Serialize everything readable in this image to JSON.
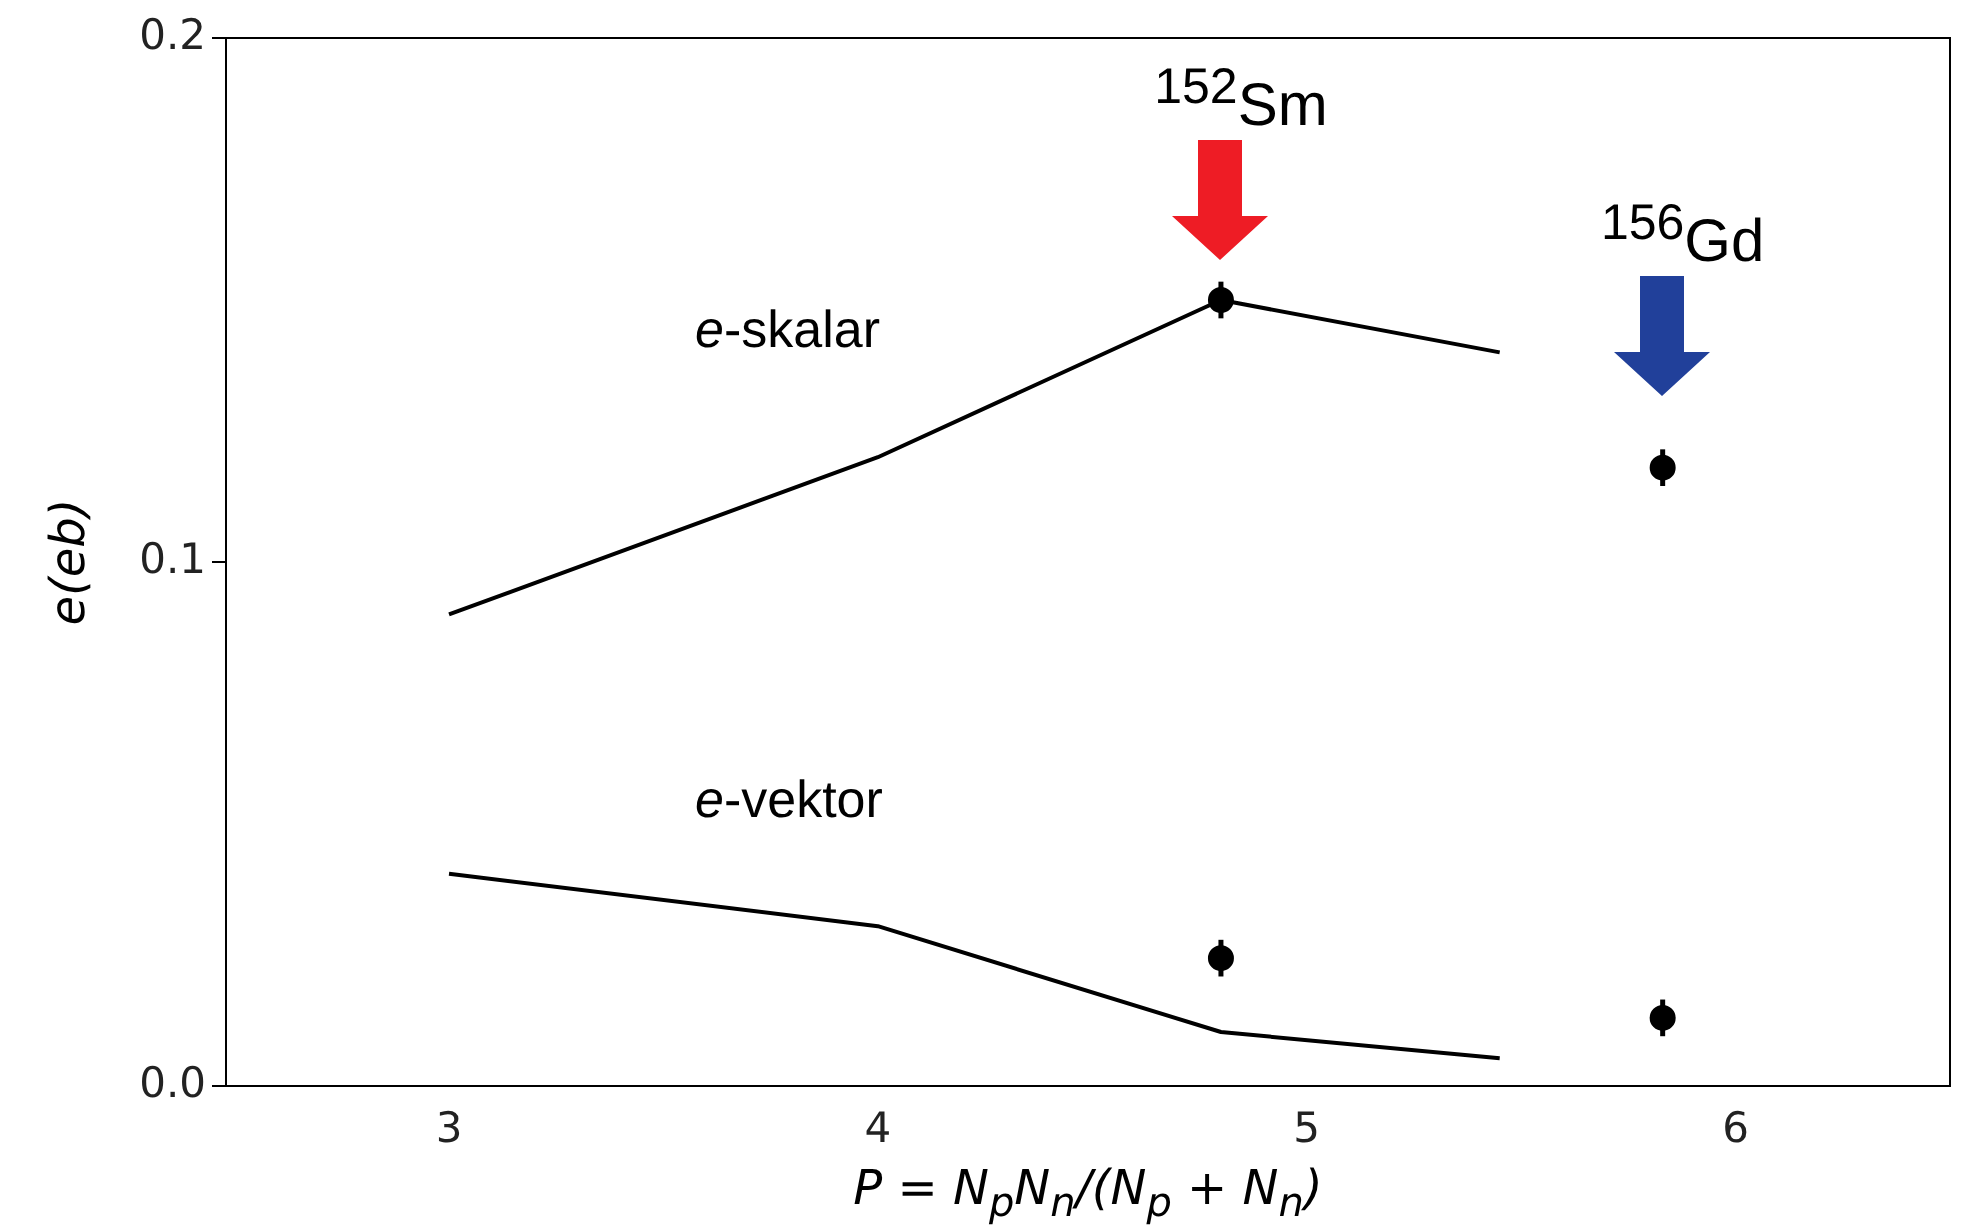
{
  "chart_data": {
    "type": "line",
    "xlabel": "P = N$_{p}$N$_{n}$/(N$_{p}$ + N$_{n}$)",
    "ylabel": "e(eb)",
    "xlim": [
      2.48,
      6.5
    ],
    "xticks": [
      3,
      4,
      5,
      6
    ],
    "ylim": [
      0,
      0.2
    ],
    "yticks": [
      {
        "value": 0,
        "label": "0.0"
      },
      {
        "value": 0.1,
        "label": "0.1"
      },
      {
        "value": 0.2,
        "label": "0.2"
      }
    ],
    "grid": false,
    "legend": false,
    "series": [
      {
        "name": "e-skalar",
        "color": "#000000",
        "marker": "none",
        "x": [
          3,
          4,
          4.8,
          5.45
        ],
        "values": [
          0.09,
          0.12,
          0.15,
          0.14
        ]
      },
      {
        "name": "e-vektor",
        "color": "#000000",
        "marker": "none",
        "x": [
          3,
          4,
          4.8,
          5.45
        ],
        "values": [
          0.0405,
          0.0305,
          0.0103,
          0.0053
        ]
      },
      {
        "type": "scatter",
        "color": "#000000",
        "marker": "circle",
        "x": [
          4.8,
          5.83,
          4.8,
          5.83
        ],
        "values": [
          0.15,
          0.118,
          0.0244,
          0.013
        ],
        "errors": [
          0.0035,
          0.0035,
          0.0035,
          0.0035
        ]
      }
    ],
    "annotations": [
      "$^{152}$Sm",
      "$^{156}$Gd"
    ]
  }
}
